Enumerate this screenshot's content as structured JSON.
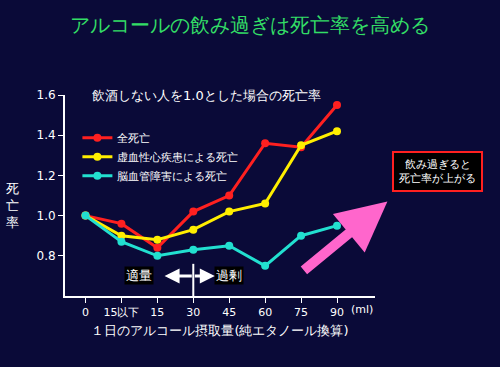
{
  "chart_data": {
    "type": "line",
    "title": "アルコールの飲み過ぎは死亡率を高める",
    "subtitle": "飲酒しない人を1.0とした場合の死亡率",
    "x_label": "１日のアルコール摂取量(純エタノール換算)",
    "y_label": "死亡率",
    "categories": [
      "0",
      "15以下",
      "15",
      "30",
      "45",
      "60",
      "75",
      "90"
    ],
    "series": [
      {
        "name": "全死亡",
        "color": "#ff2020",
        "values": [
          1.0,
          0.96,
          0.84,
          1.02,
          1.1,
          1.36,
          1.34,
          1.55
        ]
      },
      {
        "name": "虚血性心疾患による死亡",
        "color": "#ffee00",
        "values": [
          1.0,
          0.9,
          0.88,
          0.93,
          1.02,
          1.06,
          1.35,
          1.42
        ]
      },
      {
        "name": "脳血管障害による死亡",
        "color": "#22e0d0",
        "values": [
          1.0,
          0.87,
          0.8,
          0.83,
          0.85,
          0.75,
          0.9,
          0.95
        ]
      }
    ],
    "ylim": [
      0.6,
      1.6
    ],
    "yticks": [
      0.8,
      {
        "value": 1,
        "label": "1.0"
      },
      1.2,
      1.4,
      1.6
    ],
    "grid": false,
    "legend": "upper left",
    "marker": "circle",
    "annotations": [
      {
        "text": "(ml)"
      },
      {
        "text": "適量"
      },
      {
        "text": "過剰"
      },
      {
        "lines": [
          "飲み過ぎると",
          "死亡率が上がる"
        ]
      }
    ]
  }
}
